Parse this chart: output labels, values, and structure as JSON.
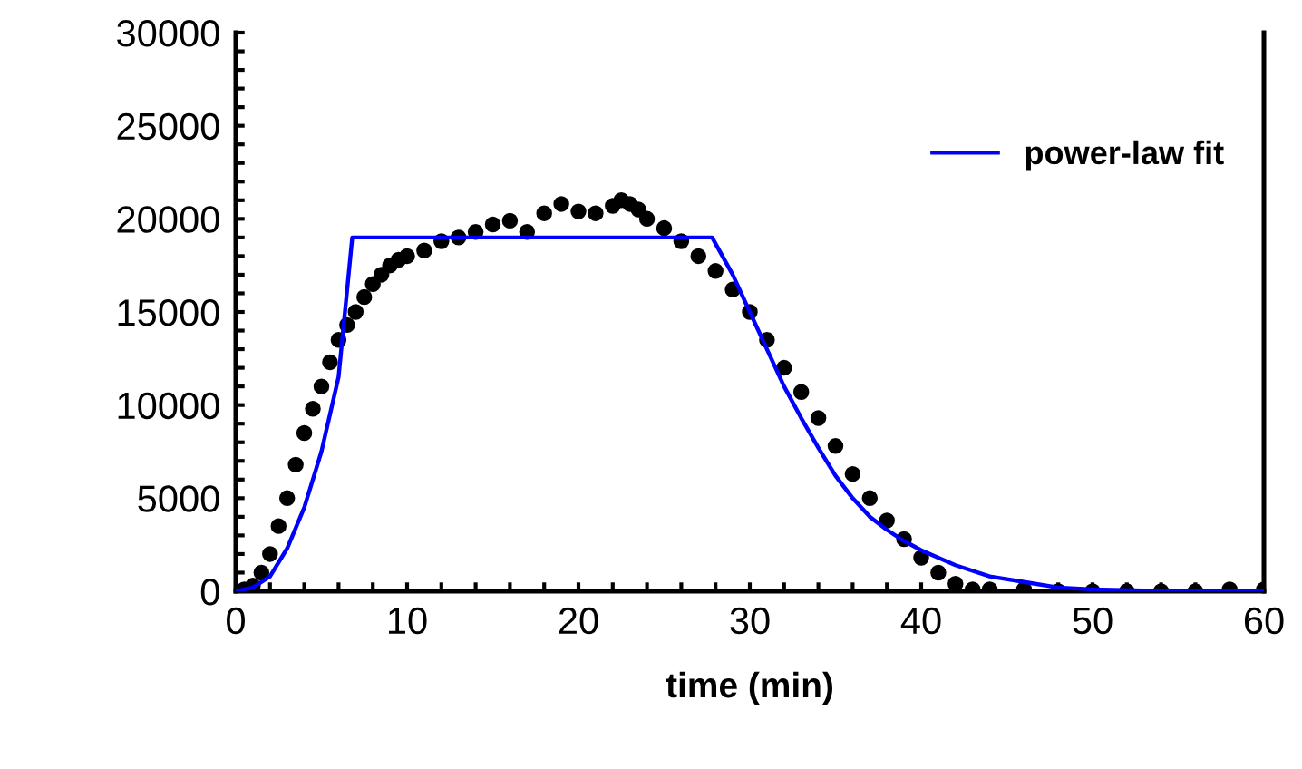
{
  "chart_data": {
    "type": "line",
    "xlabel": "time (min)",
    "series": [
      {
        "type": "scatter",
        "color": "#000000",
        "marker": "circle",
        "x": [
          0.5,
          1,
          1.5,
          2,
          2.5,
          3,
          3.5,
          4,
          4.5,
          5,
          5.5,
          6,
          6.5,
          7,
          7.5,
          8,
          8.5,
          9,
          9.5,
          10,
          11,
          12,
          13,
          14,
          15,
          16,
          17,
          18,
          19,
          20,
          21,
          22,
          22.5,
          23,
          23.5,
          24,
          25,
          26,
          27,
          28,
          29,
          30,
          31,
          32,
          33,
          34,
          35,
          36,
          37,
          38,
          39,
          40,
          41,
          42,
          43,
          44,
          46,
          48,
          50,
          52,
          54,
          56,
          58,
          60
        ],
        "values": [
          100,
          300,
          1000,
          2000,
          3500,
          5000,
          6800,
          8500,
          9800,
          11000,
          12300,
          13500,
          14300,
          15000,
          15800,
          16500,
          17000,
          17500,
          17800,
          18000,
          18300,
          18800,
          19000,
          19300,
          19700,
          19900,
          19300,
          20300,
          20800,
          20400,
          20300,
          20700,
          21000,
          20800,
          20500,
          20000,
          19500,
          18800,
          18000,
          17200,
          16200,
          15000,
          13500,
          12000,
          10700,
          9300,
          7800,
          6300,
          5000,
          3800,
          2800,
          1800,
          1000,
          400,
          100,
          100,
          100,
          0,
          0,
          0,
          0,
          0,
          100,
          100
        ]
      },
      {
        "name": "power-law fit",
        "color": "#0000ff",
        "x": [
          0,
          1,
          2,
          3,
          4,
          5,
          6,
          6.8,
          27.8,
          29,
          30,
          31,
          32,
          33,
          34,
          35,
          36,
          37,
          38,
          39,
          40,
          42,
          44,
          46,
          48,
          50,
          55,
          60
        ],
        "values": [
          0,
          200,
          800,
          2300,
          4500,
          7500,
          11500,
          19000,
          19000,
          17000,
          15000,
          13000,
          11000,
          9300,
          7700,
          6200,
          5000,
          4000,
          3300,
          2700,
          2200,
          1400,
          800,
          500,
          200,
          100,
          0,
          0
        ]
      }
    ],
    "xlim": [
      0,
      60
    ],
    "ylim": [
      0,
      30000
    ],
    "xticks": [
      0,
      {
        "value": 2,
        "label": null
      },
      {
        "value": 4,
        "label": null
      },
      {
        "value": 6,
        "label": null
      },
      {
        "value": 8,
        "label": null
      },
      10,
      {
        "value": 12,
        "label": null
      },
      {
        "value": 14,
        "label": null
      },
      {
        "value": 16,
        "label": null
      },
      {
        "value": 18,
        "label": null
      },
      20,
      {
        "value": 22,
        "label": null
      },
      {
        "value": 24,
        "label": null
      },
      {
        "value": 26,
        "label": null
      },
      {
        "value": 28,
        "label": null
      },
      30,
      {
        "value": 32,
        "label": null
      },
      {
        "value": 34,
        "label": null
      },
      {
        "value": 36,
        "label": null
      },
      {
        "value": 38,
        "label": null
      },
      40,
      {
        "value": 42,
        "label": null
      },
      {
        "value": 44,
        "label": null
      },
      {
        "value": 46,
        "label": null
      },
      {
        "value": 48,
        "label": null
      },
      50,
      {
        "value": 52,
        "label": null
      },
      {
        "value": 54,
        "label": null
      },
      {
        "value": 56,
        "label": null
      },
      {
        "value": 58,
        "label": null
      },
      60
    ],
    "yticks": [
      0,
      {
        "value": 1000,
        "label": null
      },
      {
        "value": 2000,
        "label": null
      },
      {
        "value": 3000,
        "label": null
      },
      {
        "value": 4000,
        "label": null
      },
      5000,
      {
        "value": 6000,
        "label": null
      },
      {
        "value": 7000,
        "label": null
      },
      {
        "value": 8000,
        "label": null
      },
      {
        "value": 9000,
        "label": null
      },
      10000,
      {
        "value": 11000,
        "label": null
      },
      {
        "value": 12000,
        "label": null
      },
      {
        "value": 13000,
        "label": null
      },
      {
        "value": 14000,
        "label": null
      },
      15000,
      {
        "value": 16000,
        "label": null
      },
      {
        "value": 17000,
        "label": null
      },
      {
        "value": 18000,
        "label": null
      },
      {
        "value": 19000,
        "label": null
      },
      20000,
      {
        "value": 21000,
        "label": null
      },
      {
        "value": 22000,
        "label": null
      },
      {
        "value": 23000,
        "label": null
      },
      {
        "value": 24000,
        "label": null
      },
      25000,
      {
        "value": 26000,
        "label": null
      },
      {
        "value": 27000,
        "label": null
      },
      {
        "value": 28000,
        "label": null
      },
      {
        "value": 29000,
        "label": null
      },
      30000
    ],
    "legend": "top right",
    "grid": false
  }
}
